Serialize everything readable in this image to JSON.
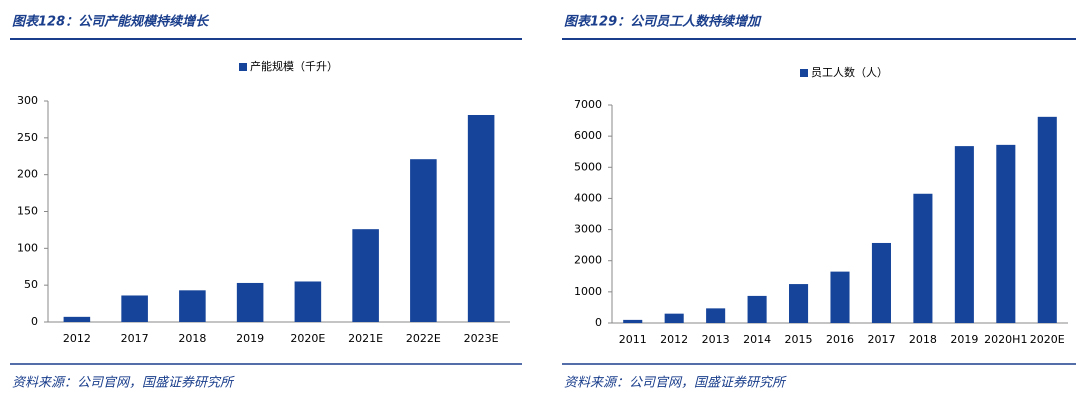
{
  "chart_data": [
    {
      "type": "bar",
      "title": "图表128：公司产能规模持续增长",
      "source": "资料来源：公司官网，国盛证券研究所",
      "categories": [
        "2012",
        "2017",
        "2018",
        "2019",
        "2020E",
        "2021E",
        "2022E",
        "2023E"
      ],
      "series": [
        {
          "name": "产能规模（千升）",
          "color": "#16449a",
          "values": [
            7,
            36,
            43,
            53,
            55,
            126,
            221,
            281
          ]
        }
      ],
      "ylim": [
        0,
        300
      ],
      "yticks": [
        0,
        50,
        100,
        150,
        200,
        250,
        300
      ]
    },
    {
      "type": "bar",
      "title": "图表129：公司员工人数持续增加",
      "source": "资料来源：公司官网，国盛证券研究所",
      "categories": [
        "2011",
        "2012",
        "2013",
        "2014",
        "2015",
        "2016",
        "2017",
        "2018",
        "2019",
        "2020H1",
        "2020E"
      ],
      "series": [
        {
          "name": "员工人数（人）",
          "color": "#16449a",
          "values": [
            100,
            300,
            470,
            870,
            1250,
            1650,
            2570,
            4150,
            5680,
            5720,
            6620
          ]
        }
      ],
      "ylim": [
        0,
        7000
      ],
      "yticks": [
        0,
        1000,
        2000,
        3000,
        4000,
        5000,
        6000,
        7000
      ]
    }
  ]
}
